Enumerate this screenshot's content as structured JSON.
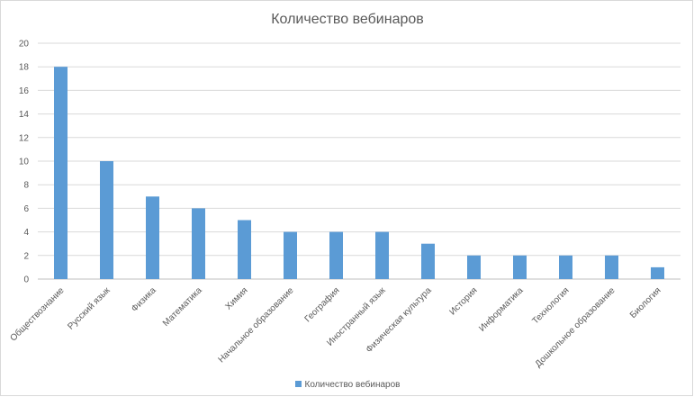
{
  "chart_data": {
    "type": "bar",
    "title": "Количество вебинаров",
    "categories": [
      "Обществознание",
      "Русский язык",
      "Физика",
      "Математика",
      "Химия",
      "Начальное образование",
      "География",
      "Иностранный язык",
      "Физическая культура",
      "История",
      "Информатика",
      "Технология",
      "Дошкольное образование",
      "Биология"
    ],
    "series": [
      {
        "name": "Количество вебинаров",
        "values": [
          18,
          10,
          7,
          6,
          5,
          4,
          4,
          4,
          3,
          2,
          2,
          2,
          2,
          1
        ],
        "color": "#5b9bd5"
      }
    ],
    "ylim": [
      0,
      20
    ],
    "yticks": [
      0,
      2,
      4,
      6,
      8,
      10,
      12,
      14,
      16,
      18,
      20
    ],
    "grid": true,
    "legend": "bottom"
  }
}
